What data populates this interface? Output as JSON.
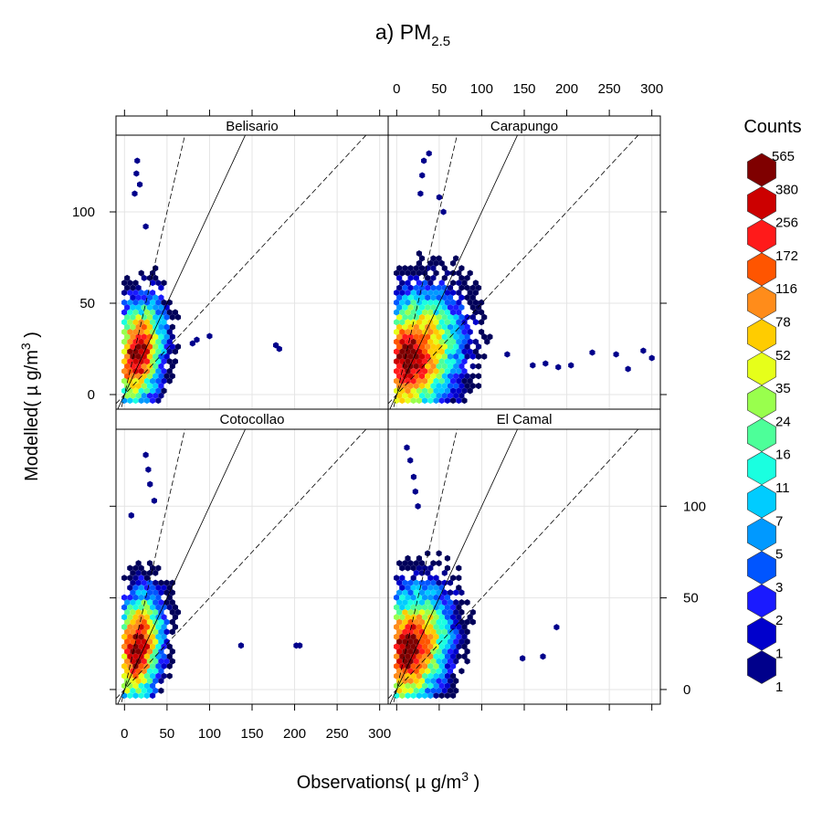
{
  "chart_data": {
    "type": "hexbin",
    "title": "a) PM",
    "title_sub": "2.5",
    "xlabel": "Observations( µ g/m",
    "xlabel_sup": "3",
    "xlabel_end": " )",
    "ylabel": "Modelled( µ g/m",
    "ylabel_sup": "3",
    "ylabel_end": " )",
    "xlim": [
      -10,
      310
    ],
    "ylim": [
      -8,
      142
    ],
    "x_ticks": [
      0,
      50,
      100,
      150,
      200,
      250,
      300
    ],
    "y_ticks": [
      0,
      50,
      100
    ],
    "reference_lines": [
      {
        "slope": 2,
        "style": "dashed"
      },
      {
        "slope": 1,
        "style": "solid"
      },
      {
        "slope": 0.5,
        "style": "dashed"
      }
    ],
    "panels": [
      {
        "name": "Belisario",
        "row": 0,
        "col": 0,
        "core": {
          "x": 15,
          "y": 22
        },
        "spread": {
          "xr": 40,
          "yr": 38
        },
        "tail_x": [
          [
            80,
            28
          ],
          [
            85,
            30
          ],
          [
            100,
            32
          ],
          [
            178,
            27
          ],
          [
            182,
            25
          ]
        ],
        "tail_y": [
          [
            12,
            110
          ],
          [
            14,
            121
          ],
          [
            15,
            128
          ],
          [
            18,
            115
          ],
          [
            25,
            92
          ]
        ]
      },
      {
        "name": "Carapungo",
        "row": 0,
        "col": 1,
        "core": {
          "x": 15,
          "y": 20
        },
        "spread": {
          "xr": 75,
          "yr": 45
        },
        "tail_x": [
          [
            130,
            22
          ],
          [
            160,
            16
          ],
          [
            175,
            17
          ],
          [
            190,
            15
          ],
          [
            205,
            16
          ],
          [
            230,
            23
          ],
          [
            258,
            22
          ],
          [
            272,
            14
          ],
          [
            290,
            24
          ],
          [
            300,
            20
          ]
        ],
        "tail_y": [
          [
            30,
            120
          ],
          [
            32,
            128
          ],
          [
            38,
            132
          ],
          [
            28,
            110
          ],
          [
            50,
            108
          ],
          [
            55,
            100
          ]
        ]
      },
      {
        "name": "Cotocollao",
        "row": 1,
        "col": 0,
        "core": {
          "x": 15,
          "y": 22
        },
        "spread": {
          "xr": 38,
          "yr": 40
        },
        "tail_x": [
          [
            137,
            24
          ],
          [
            202,
            24
          ],
          [
            206,
            24
          ]
        ],
        "tail_y": [
          [
            25,
            128
          ],
          [
            28,
            120
          ],
          [
            30,
            112
          ],
          [
            35,
            103
          ],
          [
            8,
            95
          ]
        ]
      },
      {
        "name": "El Camal",
        "row": 1,
        "col": 1,
        "core": {
          "x": 15,
          "y": 22
        },
        "spread": {
          "xr": 60,
          "yr": 42
        },
        "tail_x": [
          [
            148,
            17
          ],
          [
            172,
            18
          ],
          [
            188,
            34
          ]
        ],
        "tail_y": [
          [
            12,
            132
          ],
          [
            16,
            125
          ],
          [
            20,
            116
          ],
          [
            22,
            108
          ],
          [
            25,
            100
          ]
        ]
      }
    ],
    "legend": {
      "title": "Counts",
      "levels": [
        "565",
        "380",
        "256",
        "172",
        "116",
        "78",
        "52",
        "35",
        "24",
        "16",
        "11",
        "7",
        "5",
        "3",
        "2",
        "1",
        "1"
      ],
      "colors": [
        "#7f0000",
        "#cc0000",
        "#ff1a1a",
        "#ff5500",
        "#ff8c1a",
        "#ffcc00",
        "#e6ff1a",
        "#99ff4d",
        "#4dff99",
        "#1affe0",
        "#00ccff",
        "#0099ff",
        "#0055ff",
        "#1a1aff",
        "#0000cc",
        "#00008b",
        "#00005a"
      ]
    }
  }
}
